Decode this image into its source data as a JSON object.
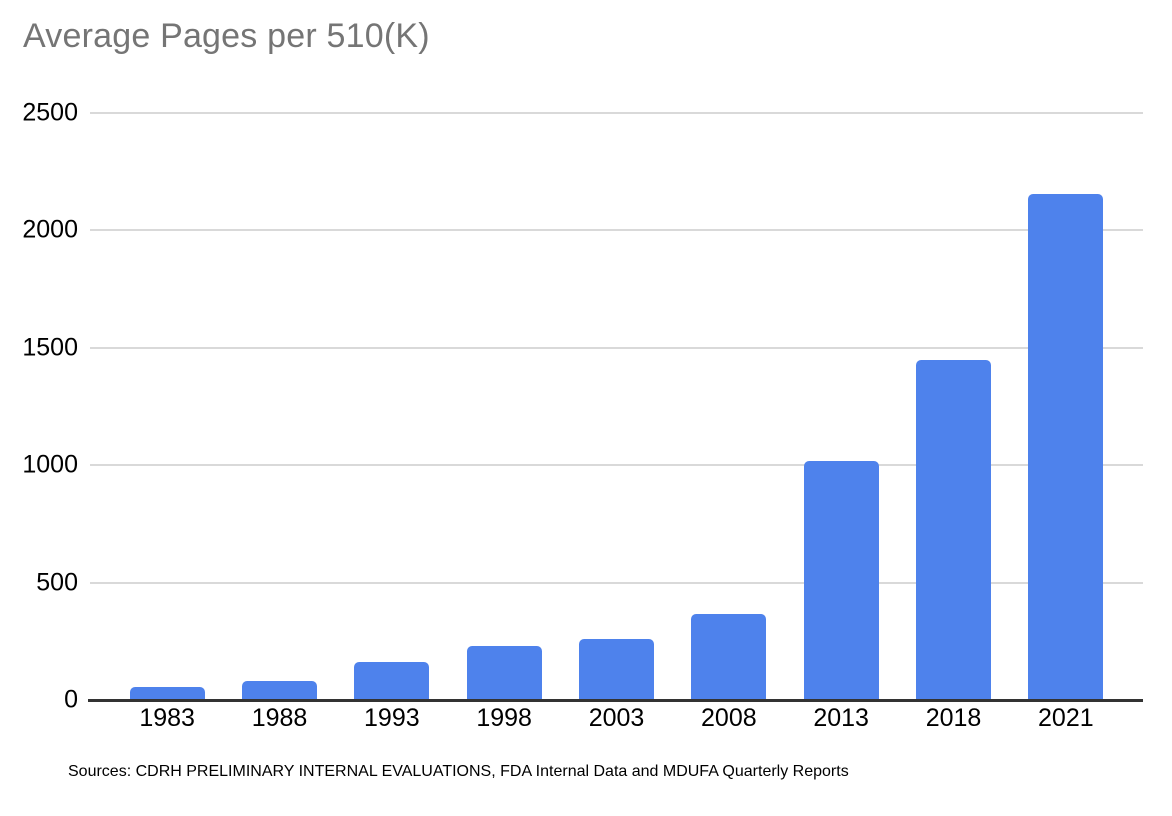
{
  "title": "Average Pages per 510(K)",
  "source_note": "Sources: CDRH PRELIMINARY INTERNAL EVALUATIONS, FDA Internal Data and MDUFA Quarterly Reports",
  "chart_data": {
    "type": "bar",
    "title": "Average Pages per 510(K)",
    "categories": [
      "1983",
      "1988",
      "1993",
      "1998",
      "2003",
      "2008",
      "2013",
      "2018",
      "2021"
    ],
    "values": [
      55,
      80,
      160,
      230,
      260,
      365,
      1020,
      1450,
      2155
    ],
    "xlabel": "",
    "ylabel": "",
    "ylim": [
      0,
      2500
    ],
    "yticks": [
      0,
      500,
      1000,
      1500,
      2000,
      2500
    ],
    "ytick_labels": [
      "0",
      "500",
      "1000",
      "1500",
      "2000",
      "2500"
    ],
    "grid": true,
    "legend": false,
    "colors": {
      "bar": "#4e82ec",
      "title_text": "#757575",
      "gridline": "#d9d9d9",
      "axis_line": "#333333",
      "tick_text": "#000000",
      "background": "#ffffff"
    }
  }
}
